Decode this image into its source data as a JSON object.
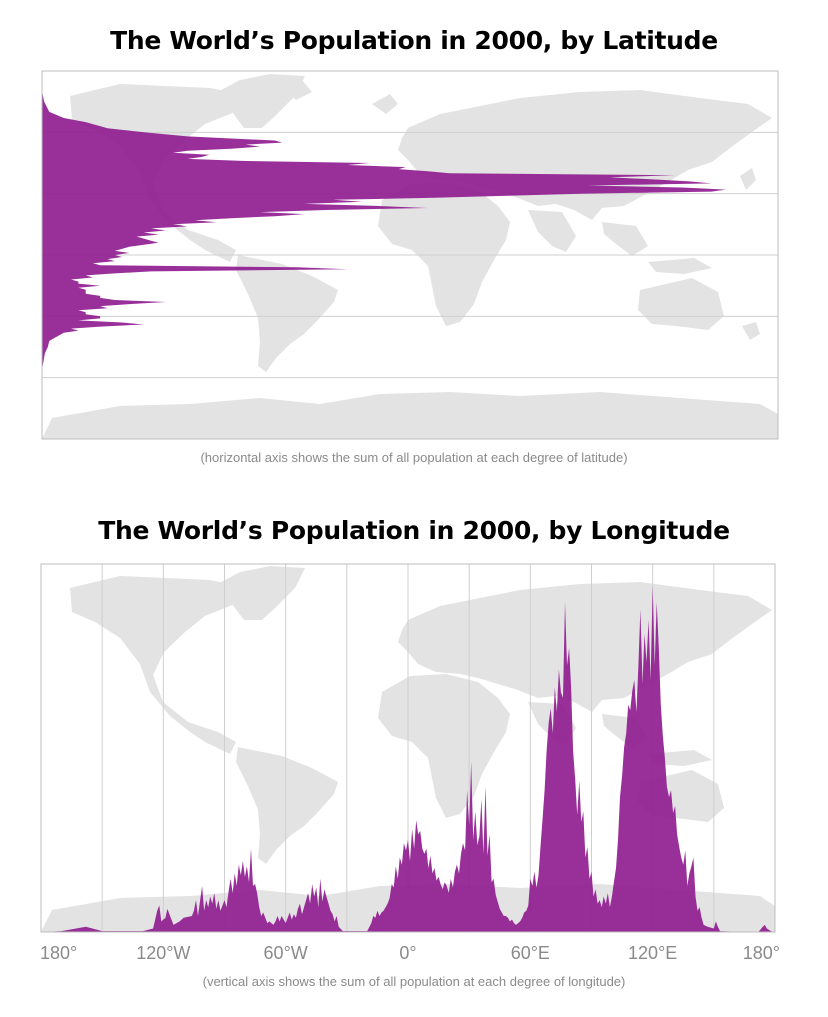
{
  "colors": {
    "accent": "#8e1a8e",
    "land": "#e3e3e3",
    "grid": "#cfcfcf",
    "frame": "#bdbdbd"
  },
  "chart_data": [
    {
      "type": "area",
      "orientation": "horizontal",
      "title": "The World’s Population in 2000, by Latitude",
      "caption": "(horizontal axis shows the sum of all population at each degree of latitude)",
      "y_axis": "latitude",
      "ylim": [
        -90,
        90
      ],
      "y_gridlines": [
        60,
        30,
        0,
        -30,
        -60
      ],
      "x_axis": "population",
      "background": "world map",
      "points": [
        [
          80,
          0
        ],
        [
          75,
          0.3
        ],
        [
          70,
          1
        ],
        [
          67,
          3
        ],
        [
          65,
          6
        ],
        [
          62,
          9
        ],
        [
          60,
          14
        ],
        [
          58,
          20
        ],
        [
          56,
          32
        ],
        [
          55,
          33
        ],
        [
          54,
          28
        ],
        [
          53,
          30
        ],
        [
          52,
          26
        ],
        [
          51,
          20
        ],
        [
          50,
          18
        ],
        [
          49,
          23
        ],
        [
          48,
          22
        ],
        [
          47,
          20
        ],
        [
          46,
          28
        ],
        [
          45,
          45
        ],
        [
          44,
          42
        ],
        [
          43,
          50
        ],
        [
          42,
          49
        ],
        [
          41,
          53
        ],
        [
          40,
          56
        ],
        [
          39,
          87
        ],
        [
          38,
          78
        ],
        [
          37,
          84
        ],
        [
          36,
          89
        ],
        [
          35,
          92
        ],
        [
          34,
          75
        ],
        [
          33,
          88
        ],
        [
          32,
          94
        ],
        [
          31,
          92
        ],
        [
          30,
          74
        ],
        [
          29,
          64
        ],
        [
          28,
          54
        ],
        [
          27,
          40
        ],
        [
          26,
          44
        ],
        [
          25,
          36
        ],
        [
          24,
          46
        ],
        [
          23,
          53
        ],
        [
          22,
          39
        ],
        [
          21,
          30
        ],
        [
          20,
          36
        ],
        [
          19,
          32
        ],
        [
          18,
          26
        ],
        [
          17,
          21
        ],
        [
          16,
          24
        ],
        [
          15,
          18
        ],
        [
          14,
          20
        ],
        [
          13,
          15
        ],
        [
          12,
          17
        ],
        [
          11,
          14
        ],
        [
          10,
          16
        ],
        [
          9,
          13
        ],
        [
          8,
          14
        ],
        [
          7,
          15
        ],
        [
          6,
          16
        ],
        [
          5,
          14
        ],
        [
          4,
          12
        ],
        [
          3,
          11
        ],
        [
          2,
          10
        ],
        [
          1,
          12
        ],
        [
          0,
          10
        ],
        [
          -1,
          11
        ],
        [
          -2,
          9
        ],
        [
          -3,
          10
        ],
        [
          -4,
          7
        ],
        [
          -5,
          8
        ],
        [
          -6,
          35
        ],
        [
          -7,
          42
        ],
        [
          -8,
          15
        ],
        [
          -9,
          10
        ],
        [
          -10,
          6
        ],
        [
          -11,
          7
        ],
        [
          -12,
          4
        ],
        [
          -13,
          5
        ],
        [
          -14,
          5
        ],
        [
          -15,
          8
        ],
        [
          -16,
          5
        ],
        [
          -17,
          6
        ],
        [
          -18,
          6
        ],
        [
          -19,
          6
        ],
        [
          -20,
          8
        ],
        [
          -21,
          8
        ],
        [
          -22,
          10
        ],
        [
          -23,
          17
        ],
        [
          -24,
          12
        ],
        [
          -25,
          8
        ],
        [
          -26,
          9
        ],
        [
          -27,
          5
        ],
        [
          -28,
          6
        ],
        [
          -29,
          6
        ],
        [
          -30,
          8
        ],
        [
          -31,
          8
        ],
        [
          -32,
          5
        ],
        [
          -33,
          11
        ],
        [
          -34,
          14
        ],
        [
          -35,
          8
        ],
        [
          -36,
          4
        ],
        [
          -37,
          5
        ],
        [
          -38,
          3
        ],
        [
          -40,
          2
        ],
        [
          -42,
          1
        ],
        [
          -45,
          0.8
        ],
        [
          -48,
          0.4
        ],
        [
          -52,
          0.2
        ],
        [
          -56,
          0
        ]
      ]
    },
    {
      "type": "area",
      "orientation": "vertical",
      "title": "The World’s Population in 2000, by Longitude",
      "caption": "(vertical axis shows the sum of all population at each degree of longitude)",
      "x_axis": "longitude",
      "xlim": [
        -180,
        180
      ],
      "tick_labels": [
        "180°",
        "120°W",
        "60°W",
        "0°",
        "60°E",
        "120°E",
        "180°"
      ],
      "tick_values": [
        -180,
        -120,
        -60,
        0,
        60,
        120,
        180
      ],
      "x_gridlines": [
        -150,
        -120,
        -90,
        -60,
        -30,
        0,
        30,
        60,
        90,
        120,
        150
      ],
      "y_axis": "population",
      "background": "world map",
      "points": [
        [
          -180,
          0
        ],
        [
          -170,
          0.5
        ],
        [
          -158,
          3
        ],
        [
          -150,
          0.5
        ],
        [
          -130,
          0.5
        ],
        [
          -125,
          2
        ],
        [
          -123,
          12
        ],
        [
          -122,
          15
        ],
        [
          -121,
          6
        ],
        [
          -119,
          8
        ],
        [
          -118,
          13
        ],
        [
          -117,
          10
        ],
        [
          -115,
          4
        ],
        [
          -112,
          6
        ],
        [
          -110,
          8
        ],
        [
          -106,
          9
        ],
        [
          -105,
          12
        ],
        [
          -104,
          18
        ],
        [
          -103,
          9
        ],
        [
          -101,
          26
        ],
        [
          -100,
          12
        ],
        [
          -99,
          18
        ],
        [
          -98,
          14
        ],
        [
          -97,
          20
        ],
        [
          -96,
          16
        ],
        [
          -95,
          22
        ],
        [
          -94,
          13
        ],
        [
          -93,
          18
        ],
        [
          -92,
          12
        ],
        [
          -91,
          15
        ],
        [
          -90,
          18
        ],
        [
          -89,
          14
        ],
        [
          -88,
          23
        ],
        [
          -87,
          30
        ],
        [
          -86,
          22
        ],
        [
          -85,
          33
        ],
        [
          -84,
          26
        ],
        [
          -83,
          38
        ],
        [
          -82,
          32
        ],
        [
          -81,
          40
        ],
        [
          -80,
          31
        ],
        [
          -79,
          37
        ],
        [
          -78,
          28
        ],
        [
          -77,
          47
        ],
        [
          -76,
          26
        ],
        [
          -75,
          27
        ],
        [
          -74,
          22
        ],
        [
          -73,
          14
        ],
        [
          -72,
          9
        ],
        [
          -71,
          11
        ],
        [
          -70,
          8
        ],
        [
          -69,
          5
        ],
        [
          -68,
          6
        ],
        [
          -66,
          4
        ],
        [
          -65,
          6
        ],
        [
          -64,
          9
        ],
        [
          -63,
          6
        ],
        [
          -62,
          9
        ],
        [
          -60,
          5
        ],
        [
          -59,
          8
        ],
        [
          -58,
          11
        ],
        [
          -57,
          7
        ],
        [
          -56,
          10
        ],
        [
          -55,
          8
        ],
        [
          -54,
          13
        ],
        [
          -53,
          16
        ],
        [
          -52,
          10
        ],
        [
          -51,
          14
        ],
        [
          -50,
          18
        ],
        [
          -49,
          22
        ],
        [
          -48,
          16
        ],
        [
          -47,
          27
        ],
        [
          -46,
          20
        ],
        [
          -45,
          25
        ],
        [
          -44,
          14
        ],
        [
          -43,
          30
        ],
        [
          -42,
          17
        ],
        [
          -41,
          24
        ],
        [
          -40,
          20
        ],
        [
          -39,
          16
        ],
        [
          -38,
          12
        ],
        [
          -37,
          10
        ],
        [
          -36,
          6
        ],
        [
          -35,
          9
        ],
        [
          -34,
          3
        ],
        [
          -32,
          0.5
        ],
        [
          -20,
          0.5
        ],
        [
          -18,
          5
        ],
        [
          -17,
          9
        ],
        [
          -16,
          8
        ],
        [
          -15,
          12
        ],
        [
          -14,
          9
        ],
        [
          -13,
          11
        ],
        [
          -12,
          12
        ],
        [
          -11,
          14
        ],
        [
          -10,
          16
        ],
        [
          -9,
          19
        ],
        [
          -8,
          27
        ],
        [
          -7,
          25
        ],
        [
          -6,
          37
        ],
        [
          -5,
          30
        ],
        [
          -4,
          42
        ],
        [
          -3,
          38
        ],
        [
          -2,
          50
        ],
        [
          -1,
          46
        ],
        [
          0,
          52
        ],
        [
          1,
          40
        ],
        [
          2,
          58
        ],
        [
          3,
          47
        ],
        [
          4,
          63
        ],
        [
          5,
          55
        ],
        [
          6,
          57
        ],
        [
          7,
          47
        ],
        [
          8,
          44
        ],
        [
          9,
          47
        ],
        [
          10,
          36
        ],
        [
          11,
          43
        ],
        [
          12,
          33
        ],
        [
          13,
          36
        ],
        [
          14,
          29
        ],
        [
          15,
          31
        ],
        [
          16,
          27
        ],
        [
          17,
          24
        ],
        [
          18,
          28
        ],
        [
          19,
          26
        ],
        [
          20,
          22
        ],
        [
          21,
          30
        ],
        [
          22,
          25
        ],
        [
          23,
          34
        ],
        [
          24,
          38
        ],
        [
          25,
          33
        ],
        [
          26,
          44
        ],
        [
          27,
          50
        ],
        [
          28,
          46
        ],
        [
          29,
          80
        ],
        [
          30,
          60
        ],
        [
          31,
          96
        ],
        [
          32,
          52
        ],
        [
          33,
          68
        ],
        [
          34,
          49
        ],
        [
          35,
          54
        ],
        [
          36,
          75
        ],
        [
          37,
          44
        ],
        [
          38,
          82
        ],
        [
          39,
          43
        ],
        [
          40,
          55
        ],
        [
          41,
          28
        ],
        [
          42,
          30
        ],
        [
          43,
          21
        ],
        [
          44,
          17
        ],
        [
          45,
          13
        ],
        [
          46,
          11
        ],
        [
          47,
          9
        ],
        [
          48,
          9
        ],
        [
          49,
          8
        ],
        [
          50,
          6
        ],
        [
          51,
          7
        ],
        [
          52,
          5
        ],
        [
          53,
          4
        ],
        [
          54,
          5
        ],
        [
          55,
          6
        ],
        [
          56,
          8
        ],
        [
          57,
          11
        ],
        [
          58,
          12
        ],
        [
          59,
          15
        ],
        [
          60,
          30
        ],
        [
          61,
          26
        ],
        [
          62,
          34
        ],
        [
          63,
          25
        ],
        [
          64,
          32
        ],
        [
          65,
          48
        ],
        [
          66,
          64
        ],
        [
          67,
          80
        ],
        [
          68,
          102
        ],
        [
          69,
          118
        ],
        [
          70,
          126
        ],
        [
          71,
          112
        ],
        [
          72,
          138
        ],
        [
          73,
          124
        ],
        [
          74,
          148
        ],
        [
          75,
          135
        ],
        [
          76,
          132
        ],
        [
          77,
          186
        ],
        [
          78,
          150
        ],
        [
          79,
          160
        ],
        [
          80,
          138
        ],
        [
          81,
          102
        ],
        [
          82,
          86
        ],
        [
          83,
          66
        ],
        [
          84,
          85
        ],
        [
          85,
          62
        ],
        [
          86,
          68
        ],
        [
          87,
          42
        ],
        [
          88,
          48
        ],
        [
          89,
          30
        ],
        [
          90,
          34
        ],
        [
          91,
          20
        ],
        [
          92,
          24
        ],
        [
          93,
          16
        ],
        [
          94,
          18
        ],
        [
          95,
          14
        ],
        [
          96,
          20
        ],
        [
          97,
          16
        ],
        [
          98,
          22
        ],
        [
          99,
          14
        ],
        [
          100,
          20
        ],
        [
          101,
          28
        ],
        [
          102,
          36
        ],
        [
          103,
          52
        ],
        [
          104,
          76
        ],
        [
          105,
          88
        ],
        [
          106,
          104
        ],
        [
          107,
          112
        ],
        [
          108,
          128
        ],
        [
          109,
          125
        ],
        [
          110,
          136
        ],
        [
          111,
          142
        ],
        [
          112,
          124
        ],
        [
          113,
          150
        ],
        [
          114,
          182
        ],
        [
          115,
          140
        ],
        [
          116,
          168
        ],
        [
          117,
          152
        ],
        [
          118,
          176
        ],
        [
          119,
          142
        ],
        [
          120,
          195
        ],
        [
          121,
          150
        ],
        [
          122,
          186
        ],
        [
          123,
          160
        ],
        [
          124,
          128
        ],
        [
          125,
          110
        ],
        [
          126,
          98
        ],
        [
          127,
          82
        ],
        [
          128,
          76
        ],
        [
          129,
          80
        ],
        [
          130,
          67
        ],
        [
          131,
          71
        ],
        [
          132,
          55
        ],
        [
          133,
          48
        ],
        [
          134,
          42
        ],
        [
          135,
          38
        ],
        [
          136,
          46
        ],
        [
          137,
          26
        ],
        [
          138,
          33
        ],
        [
          139,
          37
        ],
        [
          140,
          42
        ],
        [
          141,
          20
        ],
        [
          142,
          12
        ],
        [
          143,
          14
        ],
        [
          144,
          8
        ],
        [
          145,
          4
        ],
        [
          147,
          3
        ],
        [
          150,
          2
        ],
        [
          151,
          6
        ],
        [
          152,
          3
        ],
        [
          153,
          0.5
        ],
        [
          160,
          0.2
        ],
        [
          172,
          0.2
        ],
        [
          174,
          3
        ],
        [
          175,
          4
        ],
        [
          176,
          2
        ],
        [
          178,
          0.5
        ],
        [
          180,
          0
        ]
      ]
    }
  ]
}
